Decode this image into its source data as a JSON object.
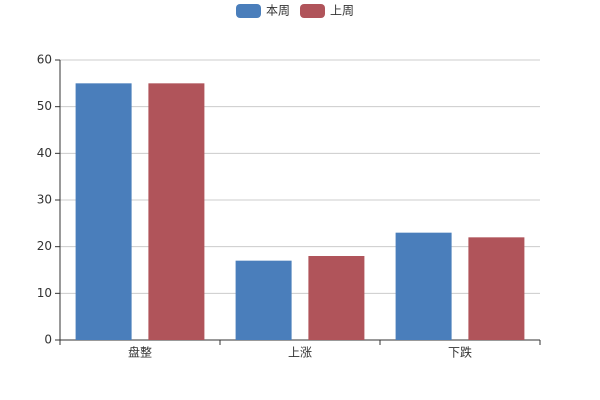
{
  "chart_data": {
    "type": "bar",
    "categories": [
      "盘整",
      "上涨",
      "下跌"
    ],
    "series": [
      {
        "name": "本周",
        "color": "#4a7ebb",
        "values": [
          55,
          17,
          23
        ]
      },
      {
        "name": "上周",
        "color": "#b0545a",
        "values": [
          55,
          18,
          22
        ]
      }
    ],
    "ylim": [
      0,
      60
    ],
    "yticks": [
      0,
      10,
      20,
      30,
      40,
      50,
      60
    ],
    "grid": true,
    "legend": "top"
  }
}
